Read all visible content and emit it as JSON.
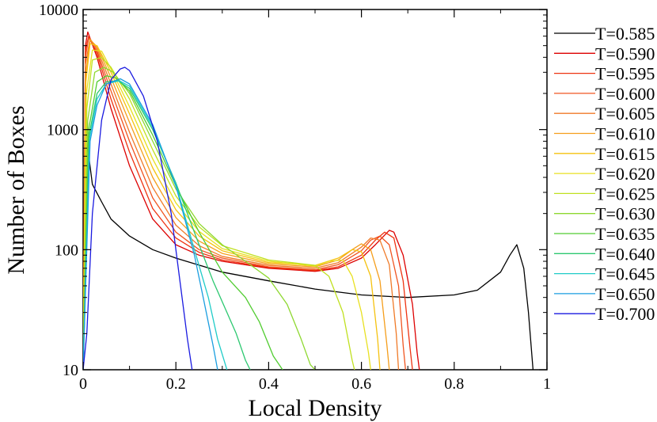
{
  "chart_data": {
    "type": "line",
    "title": "",
    "xlabel": "Local Density",
    "ylabel": "Number of Boxes",
    "xlim": [
      0,
      1
    ],
    "ylim": [
      10,
      10000
    ],
    "yscale": "log",
    "grid": false,
    "legend_position": "right",
    "x_ticks": [
      {
        "value": 0,
        "label": "0"
      },
      {
        "value": 0.2,
        "label": "0.2"
      },
      {
        "value": 0.4,
        "label": "0.4"
      },
      {
        "value": 0.6,
        "label": "0.6"
      },
      {
        "value": 0.8,
        "label": "0.8"
      },
      {
        "value": 1,
        "label": "1"
      }
    ],
    "y_ticks": [
      {
        "value": 10,
        "label": "10"
      },
      {
        "value": 100,
        "label": "100"
      },
      {
        "value": 1000,
        "label": "1000"
      },
      {
        "value": 10000,
        "label": "10000"
      }
    ],
    "series": [
      {
        "name": "T=0.585",
        "color": "#000000",
        "x": [
          0.0,
          0.005,
          0.01,
          0.02,
          0.04,
          0.06,
          0.1,
          0.15,
          0.2,
          0.3,
          0.4,
          0.5,
          0.6,
          0.7,
          0.8,
          0.85,
          0.9,
          0.92,
          0.935,
          0.95,
          0.96,
          0.97
        ],
        "y": [
          10,
          2000,
          700,
          350,
          250,
          180,
          130,
          100,
          85,
          65,
          55,
          47,
          42,
          40,
          42,
          46,
          65,
          90,
          110,
          70,
          30,
          10
        ]
      },
      {
        "name": "T=0.590",
        "color": "#dd0000",
        "x": [
          0.0,
          0.005,
          0.01,
          0.03,
          0.06,
          0.1,
          0.15,
          0.2,
          0.25,
          0.3,
          0.4,
          0.5,
          0.55,
          0.6,
          0.63,
          0.66,
          0.67,
          0.69,
          0.71,
          0.72,
          0.725
        ],
        "y": [
          10,
          5000,
          6500,
          4000,
          1500,
          500,
          180,
          110,
          90,
          80,
          70,
          66,
          70,
          85,
          110,
          145,
          140,
          90,
          35,
          14,
          10
        ]
      },
      {
        "name": "T=0.595",
        "color": "#ee3311",
        "x": [
          0.0,
          0.005,
          0.012,
          0.03,
          0.06,
          0.1,
          0.15,
          0.2,
          0.25,
          0.3,
          0.4,
          0.5,
          0.55,
          0.6,
          0.63,
          0.65,
          0.67,
          0.69,
          0.705,
          0.71
        ],
        "y": [
          10,
          4500,
          6000,
          4300,
          1800,
          650,
          220,
          125,
          95,
          82,
          71,
          67,
          72,
          90,
          120,
          140,
          125,
          55,
          15,
          10
        ]
      },
      {
        "name": "T=0.600",
        "color": "#f05520",
        "x": [
          0.0,
          0.005,
          0.012,
          0.03,
          0.06,
          0.1,
          0.15,
          0.2,
          0.25,
          0.3,
          0.4,
          0.5,
          0.55,
          0.6,
          0.62,
          0.64,
          0.66,
          0.68,
          0.69,
          0.695
        ],
        "y": [
          10,
          4000,
          5800,
          4500,
          2100,
          800,
          270,
          140,
          100,
          85,
          72,
          68,
          75,
          98,
          120,
          130,
          110,
          50,
          16,
          10
        ]
      },
      {
        "name": "T=0.605",
        "color": "#f07a28",
        "x": [
          0.0,
          0.005,
          0.015,
          0.03,
          0.06,
          0.1,
          0.15,
          0.2,
          0.25,
          0.3,
          0.4,
          0.5,
          0.55,
          0.6,
          0.62,
          0.64,
          0.66,
          0.675,
          0.68
        ],
        "y": [
          10,
          3500,
          5700,
          4700,
          2400,
          950,
          330,
          160,
          108,
          88,
          74,
          70,
          78,
          105,
          125,
          120,
          75,
          20,
          10
        ]
      },
      {
        "name": "T=0.610",
        "color": "#f59e1c",
        "x": [
          0.0,
          0.006,
          0.015,
          0.03,
          0.06,
          0.1,
          0.15,
          0.2,
          0.25,
          0.3,
          0.4,
          0.5,
          0.55,
          0.58,
          0.6,
          0.62,
          0.64,
          0.655,
          0.66
        ],
        "y": [
          10,
          3000,
          5600,
          4900,
          2700,
          1150,
          400,
          185,
          118,
          93,
          76,
          72,
          82,
          100,
          112,
          100,
          55,
          16,
          10
        ]
      },
      {
        "name": "T=0.615",
        "color": "#f5c20f",
        "x": [
          0.0,
          0.006,
          0.015,
          0.03,
          0.06,
          0.1,
          0.15,
          0.2,
          0.25,
          0.3,
          0.4,
          0.5,
          0.55,
          0.58,
          0.6,
          0.62,
          0.635,
          0.64
        ],
        "y": [
          10,
          2500,
          5200,
          5000,
          3000,
          1350,
          480,
          215,
          130,
          98,
          78,
          74,
          85,
          100,
          96,
          60,
          18,
          10
        ]
      },
      {
        "name": "T=0.620",
        "color": "#e8e020",
        "x": [
          0.0,
          0.007,
          0.02,
          0.04,
          0.06,
          0.1,
          0.15,
          0.2,
          0.25,
          0.3,
          0.4,
          0.5,
          0.53,
          0.56,
          0.58,
          0.6,
          0.615,
          0.62
        ],
        "y": [
          10,
          2000,
          4600,
          4500,
          3200,
          1550,
          570,
          245,
          142,
          102,
          80,
          73,
          80,
          82,
          60,
          30,
          14,
          10
        ]
      },
      {
        "name": "T=0.625",
        "color": "#c0e020",
        "x": [
          0.0,
          0.008,
          0.02,
          0.04,
          0.06,
          0.1,
          0.15,
          0.2,
          0.25,
          0.3,
          0.4,
          0.45,
          0.5,
          0.53,
          0.56,
          0.58,
          0.585
        ],
        "y": [
          10,
          1500,
          3800,
          4000,
          3300,
          1800,
          680,
          280,
          155,
          108,
          82,
          78,
          74,
          60,
          30,
          12,
          10
        ]
      },
      {
        "name": "T=0.630",
        "color": "#8ed830",
        "x": [
          0.0,
          0.01,
          0.025,
          0.045,
          0.065,
          0.1,
          0.15,
          0.2,
          0.25,
          0.3,
          0.35,
          0.4,
          0.44,
          0.47,
          0.49,
          0.5
        ],
        "y": [
          10,
          1200,
          3000,
          3300,
          3000,
          2000,
          800,
          320,
          165,
          110,
          80,
          58,
          35,
          18,
          11,
          10
        ]
      },
      {
        "name": "T=0.635",
        "color": "#50cc30",
        "x": [
          0.0,
          0.012,
          0.03,
          0.05,
          0.07,
          0.1,
          0.15,
          0.2,
          0.25,
          0.3,
          0.35,
          0.38,
          0.41,
          0.43
        ],
        "y": [
          10,
          1000,
          2500,
          2800,
          2700,
          2100,
          900,
          340,
          140,
          65,
          40,
          25,
          13,
          10
        ]
      },
      {
        "name": "T=0.640",
        "color": "#2cc870",
        "x": [
          0.0,
          0.013,
          0.03,
          0.05,
          0.075,
          0.1,
          0.15,
          0.2,
          0.25,
          0.28,
          0.31,
          0.33,
          0.35,
          0.36
        ],
        "y": [
          10,
          900,
          2000,
          2500,
          2550,
          2200,
          1000,
          360,
          110,
          55,
          30,
          20,
          12,
          10
        ]
      },
      {
        "name": "T=0.645",
        "color": "#20ccc8",
        "x": [
          0.0,
          0.014,
          0.03,
          0.05,
          0.078,
          0.1,
          0.15,
          0.2,
          0.24,
          0.27,
          0.29,
          0.31
        ],
        "y": [
          10,
          850,
          1800,
          2400,
          2550,
          2300,
          1050,
          350,
          100,
          40,
          18,
          10
        ]
      },
      {
        "name": "T=0.650",
        "color": "#1a9ee0",
        "x": [
          0.0,
          0.015,
          0.03,
          0.05,
          0.08,
          0.1,
          0.15,
          0.2,
          0.24,
          0.26,
          0.28,
          0.29
        ],
        "y": [
          10,
          800,
          1600,
          2400,
          2650,
          2400,
          1100,
          340,
          90,
          38,
          16,
          10
        ]
      },
      {
        "name": "T=0.700",
        "color": "#1a1ae0",
        "x": [
          0.0,
          0.008,
          0.02,
          0.04,
          0.06,
          0.08,
          0.09,
          0.1,
          0.13,
          0.16,
          0.19,
          0.21,
          0.225,
          0.235
        ],
        "y": [
          10,
          20,
          200,
          1200,
          2600,
          3200,
          3300,
          3100,
          1900,
          800,
          200,
          50,
          18,
          10
        ]
      }
    ]
  }
}
